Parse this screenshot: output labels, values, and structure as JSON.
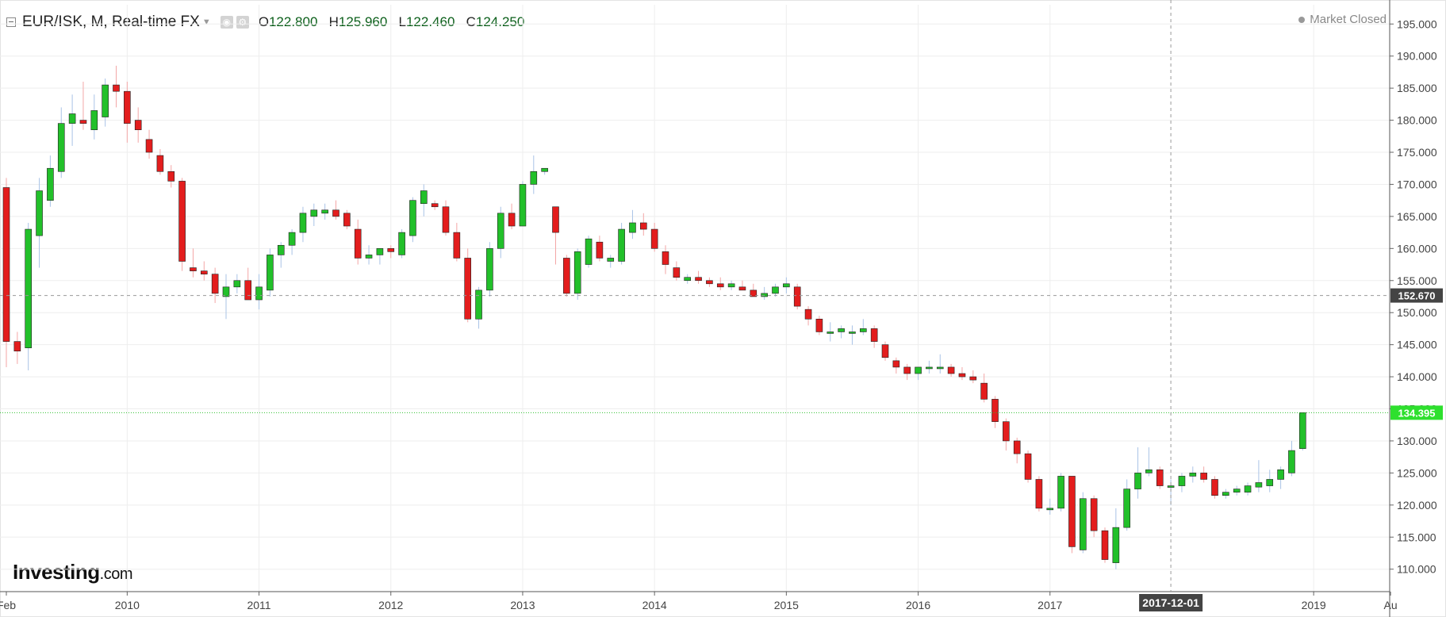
{
  "header": {
    "symbol": "EUR/ISK, M, Real-time FX",
    "open_label": "O",
    "open": "122.800",
    "high_label": "H",
    "high": "125.960",
    "low_label": "L",
    "low": "122.460",
    "close_label": "C",
    "close": "124.250",
    "market_status": "Market Closed"
  },
  "logo": {
    "main": "Investing",
    "suffix": ".com"
  },
  "crosshair": {
    "date_label": "2017-12-01",
    "price_label": "152.670",
    "price": 152.67,
    "date_index": 106
  },
  "current_price": {
    "label": "134.395",
    "value": 134.395
  },
  "colors": {
    "up": "#22c02a",
    "down": "#e31d1d",
    "crosshair_price_bg": "#444444",
    "current_price_bg": "#2ee02e",
    "grid": "#eeeeee"
  },
  "chart_data": {
    "type": "candlestick",
    "interval": "monthly",
    "ylim": [
      106.5,
      198.0
    ],
    "y_ticks": [
      "110.000",
      "115.000",
      "120.000",
      "125.000",
      "130.000",
      "135.000",
      "140.000",
      "145.000",
      "150.000",
      "155.000",
      "160.000",
      "165.000",
      "170.000",
      "175.000",
      "180.000",
      "185.000",
      "190.000",
      "195.000"
    ],
    "x_ticks": [
      {
        "label": "Feb",
        "index": 0
      },
      {
        "label": "2010",
        "index": 11
      },
      {
        "label": "2011",
        "index": 23
      },
      {
        "label": "2012",
        "index": 35
      },
      {
        "label": "2013",
        "index": 47
      },
      {
        "label": "2014",
        "index": 59
      },
      {
        "label": "2015",
        "index": 71
      },
      {
        "label": "2016",
        "index": 83
      },
      {
        "label": "2017",
        "index": 95
      },
      {
        "label": "2019",
        "index": 119
      },
      {
        "label": "Au",
        "index": 126
      }
    ],
    "candles": [
      [
        169.5,
        171.0,
        141.5,
        145.5
      ],
      [
        145.5,
        147.0,
        142.0,
        144.0
      ],
      [
        144.5,
        164.0,
        141.0,
        163.0
      ],
      [
        162.0,
        171.0,
        157.0,
        169.0
      ],
      [
        167.5,
        174.5,
        166.5,
        172.5
      ],
      [
        172.0,
        182.0,
        171.0,
        179.5
      ],
      [
        179.5,
        184.0,
        176.0,
        181.0
      ],
      [
        180.0,
        186.0,
        178.5,
        179.5
      ],
      [
        178.5,
        184.0,
        177.0,
        181.5
      ],
      [
        180.5,
        186.5,
        179.0,
        185.5
      ],
      [
        185.5,
        188.5,
        182.0,
        184.5
      ],
      [
        184.5,
        186.0,
        176.5,
        179.5
      ],
      [
        180.0,
        182.0,
        176.5,
        178.5
      ],
      [
        177.0,
        178.5,
        174.0,
        175.0
      ],
      [
        174.5,
        175.5,
        171.5,
        172.0
      ],
      [
        172.0,
        173.0,
        169.5,
        170.5
      ],
      [
        170.5,
        171.0,
        156.5,
        158.0
      ],
      [
        157.0,
        160.0,
        155.5,
        156.5
      ],
      [
        156.5,
        158.0,
        155.0,
        156.0
      ],
      [
        156.0,
        157.0,
        151.5,
        153.0
      ],
      [
        152.5,
        156.0,
        149.0,
        154.0
      ],
      [
        154.0,
        156.0,
        153.0,
        155.0
      ],
      [
        155.0,
        157.0,
        152.0,
        152.0
      ],
      [
        152.0,
        156.0,
        150.5,
        154.0
      ],
      [
        153.5,
        160.0,
        152.5,
        159.0
      ],
      [
        159.0,
        161.0,
        157.0,
        160.5
      ],
      [
        160.5,
        163.0,
        159.0,
        162.5
      ],
      [
        162.5,
        166.5,
        161.0,
        165.5
      ],
      [
        165.0,
        167.0,
        163.5,
        166.0
      ],
      [
        165.5,
        167.0,
        164.5,
        166.0
      ],
      [
        166.0,
        167.5,
        164.5,
        165.0
      ],
      [
        165.5,
        166.0,
        163.0,
        163.5
      ],
      [
        163.0,
        164.5,
        157.5,
        158.5
      ],
      [
        158.5,
        160.5,
        157.5,
        159.0
      ],
      [
        159.0,
        160.0,
        157.5,
        160.0
      ],
      [
        160.0,
        160.5,
        158.5,
        159.5
      ],
      [
        159.0,
        163.0,
        158.5,
        162.5
      ],
      [
        162.0,
        168.0,
        161.0,
        167.5
      ],
      [
        167.0,
        170.0,
        165.0,
        169.0
      ],
      [
        167.0,
        167.5,
        166.0,
        166.5
      ],
      [
        166.5,
        167.5,
        162.0,
        162.5
      ],
      [
        162.5,
        164.0,
        158.0,
        158.5
      ],
      [
        158.5,
        160.0,
        148.5,
        149.0
      ],
      [
        149.0,
        154.0,
        147.5,
        153.5
      ],
      [
        153.5,
        161.0,
        152.5,
        160.0
      ],
      [
        160.0,
        166.5,
        158.5,
        165.5
      ],
      [
        165.5,
        167.0,
        163.0,
        163.5
      ],
      [
        163.5,
        170.5,
        163.5,
        170.0
      ],
      [
        170.0,
        174.5,
        168.5,
        172.0
      ],
      [
        172.0,
        172.5,
        171.5,
        172.5
      ],
      [
        166.5,
        166.5,
        157.5,
        162.5
      ],
      [
        158.5,
        159.0,
        152.5,
        153.0
      ],
      [
        153.0,
        160.0,
        152.0,
        159.5
      ],
      [
        157.5,
        162.0,
        157.0,
        161.5
      ],
      [
        161.0,
        162.0,
        158.0,
        158.5
      ],
      [
        158.0,
        159.0,
        157.0,
        158.5
      ],
      [
        158.0,
        164.0,
        157.5,
        163.0
      ],
      [
        162.5,
        166.0,
        161.5,
        164.0
      ],
      [
        164.0,
        165.5,
        162.0,
        163.0
      ],
      [
        163.0,
        164.0,
        159.5,
        160.0
      ],
      [
        159.5,
        160.5,
        156.0,
        157.5
      ],
      [
        157.0,
        158.0,
        155.0,
        155.5
      ],
      [
        155.0,
        156.0,
        154.5,
        155.5
      ],
      [
        155.5,
        156.5,
        154.5,
        155.0
      ],
      [
        155.0,
        155.5,
        154.0,
        154.5
      ],
      [
        154.5,
        155.5,
        153.5,
        154.0
      ],
      [
        154.0,
        155.0,
        153.5,
        154.5
      ],
      [
        154.0,
        155.0,
        153.5,
        153.5
      ],
      [
        153.5,
        154.5,
        152.5,
        152.5
      ],
      [
        152.5,
        154.0,
        152.0,
        153.0
      ],
      [
        153.0,
        154.5,
        152.5,
        154.0
      ],
      [
        154.0,
        155.5,
        153.0,
        154.5
      ],
      [
        154.0,
        154.5,
        150.5,
        151.0
      ],
      [
        150.5,
        151.0,
        148.0,
        149.0
      ],
      [
        149.0,
        149.5,
        146.5,
        147.0
      ],
      [
        147.0,
        148.5,
        145.5,
        147.0
      ],
      [
        147.0,
        148.0,
        146.0,
        147.5
      ],
      [
        147.0,
        148.0,
        145.0,
        147.0
      ],
      [
        147.0,
        149.0,
        146.5,
        147.5
      ],
      [
        147.5,
        148.0,
        144.5,
        145.5
      ],
      [
        145.0,
        145.5,
        142.5,
        143.0
      ],
      [
        142.5,
        143.0,
        140.5,
        141.5
      ],
      [
        141.5,
        142.0,
        139.5,
        140.5
      ],
      [
        140.5,
        141.5,
        139.5,
        141.5
      ],
      [
        141.5,
        142.5,
        140.5,
        141.5
      ],
      [
        141.5,
        143.5,
        140.5,
        141.5
      ],
      [
        141.5,
        142.0,
        140.0,
        140.5
      ],
      [
        140.5,
        141.5,
        139.5,
        140.0
      ],
      [
        140.0,
        141.0,
        139.0,
        139.5
      ],
      [
        139.0,
        140.5,
        136.0,
        136.5
      ],
      [
        136.5,
        137.0,
        132.0,
        133.0
      ],
      [
        133.0,
        133.5,
        128.5,
        130.0
      ],
      [
        130.0,
        130.5,
        126.5,
        128.0
      ],
      [
        128.0,
        128.5,
        123.5,
        124.0
      ],
      [
        124.0,
        124.5,
        119.0,
        119.5
      ],
      [
        119.5,
        121.0,
        118.5,
        119.5
      ],
      [
        119.5,
        125.0,
        119.0,
        124.5
      ],
      [
        124.5,
        124.5,
        112.5,
        113.5
      ],
      [
        113.0,
        122.0,
        112.5,
        121.0
      ],
      [
        121.0,
        121.5,
        115.0,
        116.0
      ],
      [
        116.0,
        116.5,
        111.0,
        111.5
      ],
      [
        111.0,
        119.5,
        110.0,
        116.5
      ],
      [
        116.5,
        124.0,
        116.0,
        122.5
      ],
      [
        122.5,
        129.0,
        121.0,
        125.0
      ],
      [
        125.0,
        129.0,
        124.5,
        125.5
      ],
      [
        125.5,
        126.0,
        122.5,
        123.0
      ],
      [
        123.0,
        124.0,
        120.0,
        123.0
      ],
      [
        123.0,
        125.0,
        122.0,
        124.5
      ],
      [
        124.5,
        126.0,
        123.5,
        125.0
      ],
      [
        125.0,
        126.0,
        123.5,
        124.0
      ],
      [
        124.0,
        124.5,
        121.0,
        121.5
      ],
      [
        121.5,
        122.5,
        121.0,
        122.0
      ],
      [
        122.0,
        123.0,
        121.5,
        122.5
      ],
      [
        122.0,
        123.5,
        121.5,
        123.0
      ],
      [
        122.8,
        127.0,
        122.0,
        123.5
      ],
      [
        123.0,
        125.5,
        122.0,
        124.0
      ],
      [
        124.0,
        126.0,
        122.5,
        125.5
      ],
      [
        125.0,
        130.0,
        124.5,
        128.5
      ],
      [
        128.8,
        134.4,
        128.5,
        134.4
      ]
    ]
  }
}
